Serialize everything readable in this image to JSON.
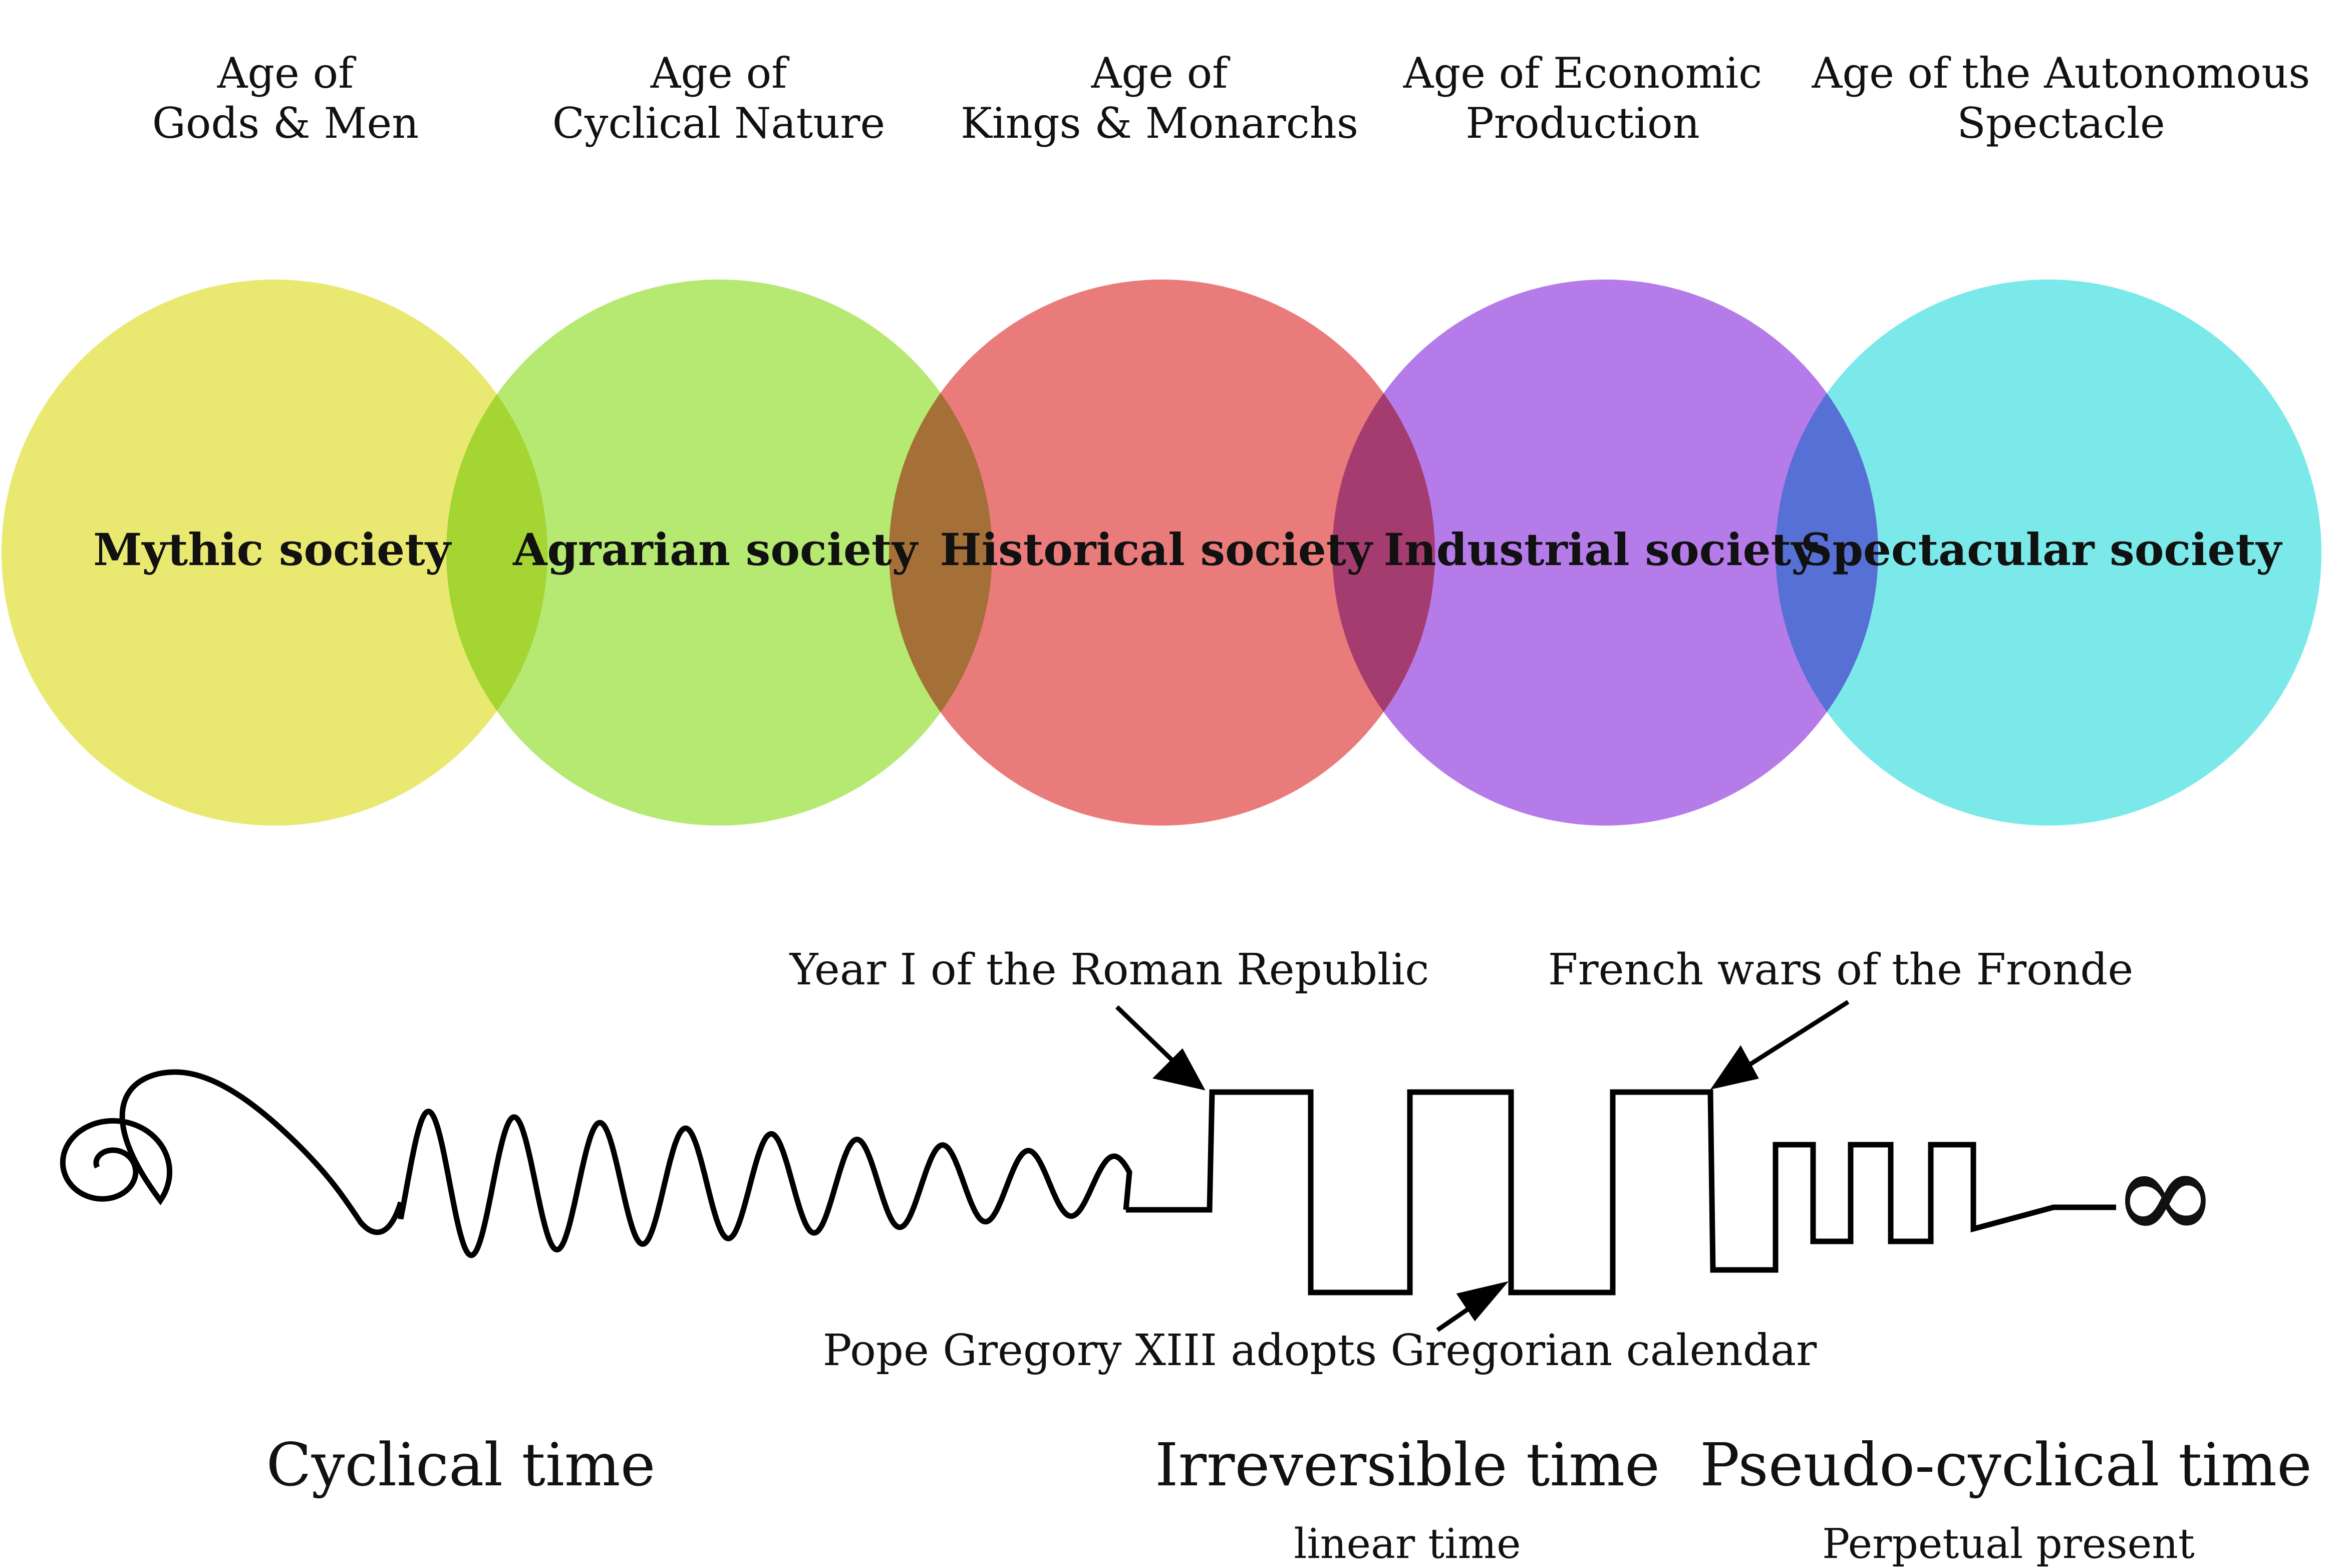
{
  "ages": [
    {
      "line1": "Age of",
      "line2": "Gods & Men"
    },
    {
      "line1": "Age of",
      "line2": "Cyclical Nature"
    },
    {
      "line1": "Age of",
      "line2": "Kings & Monarchs"
    },
    {
      "line1": "Age of Economic",
      "line2": "Production"
    },
    {
      "line1": "Age of the Autonomous",
      "line2": "Spectacle"
    }
  ],
  "societies": [
    {
      "label": "Mythic society",
      "color": "#e3e34e"
    },
    {
      "label": "Agrarian society",
      "color": "#a3e34e"
    },
    {
      "label": "Historical society",
      "color": "#e35a5a"
    },
    {
      "label": "Industrial society",
      "color": "#a25ae3"
    },
    {
      "label": "Spectacular society",
      "color": "#5ae3e3"
    }
  ],
  "annotations": {
    "roman_republic": "Year I of the Roman Republic",
    "fronde": "French wars of the Fronde",
    "gregorian": "Pope Gregory XIII adopts Gregorian calendar"
  },
  "time_labels": {
    "cyclical": "Cyclical time",
    "irreversible": "Irreversible time",
    "irreversible_sub": "linear time",
    "pseudo": "Pseudo-cyclical time",
    "pseudo_sub": "Perpetual present"
  },
  "infinity_symbol": "∞"
}
